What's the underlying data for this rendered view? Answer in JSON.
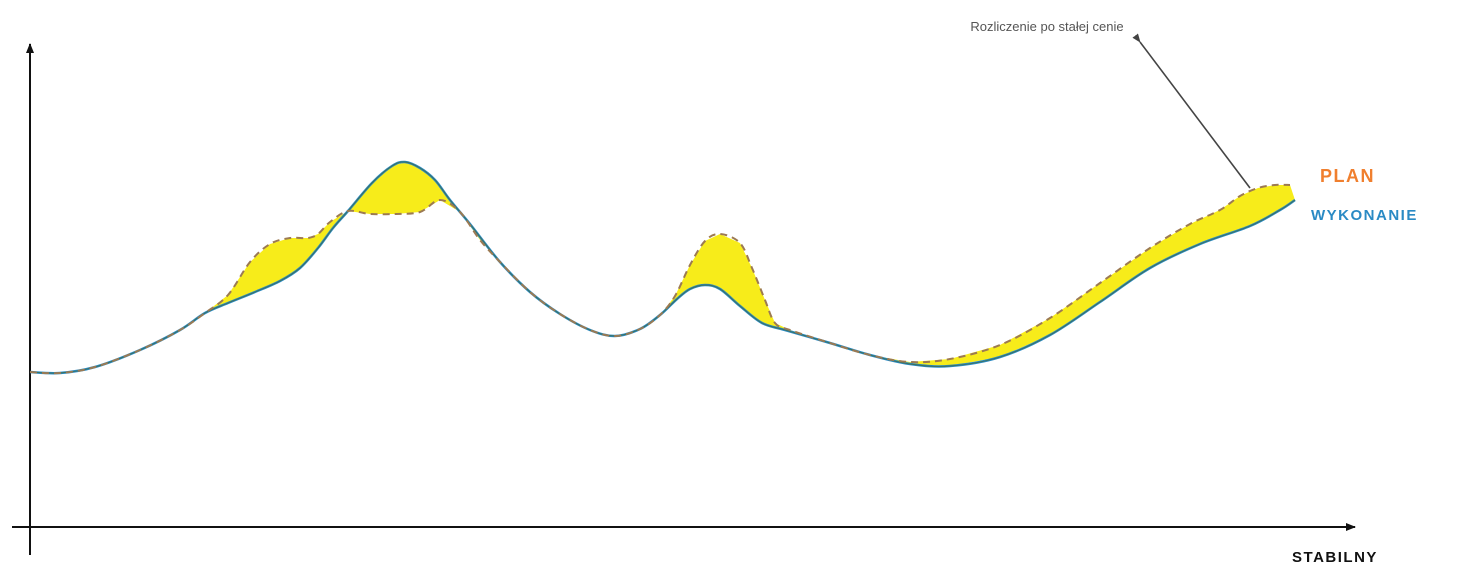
{
  "chart_data": {
    "type": "line",
    "xlabel": "STABILNY",
    "ylabel": "",
    "grid": false,
    "legend": "right, next to line ends",
    "annotation": "Rozliczenie po stałej cenie",
    "series": [
      {
        "name": "PLAN",
        "color": "#f07f2e",
        "style": "dashed",
        "points": [
          [
            30,
            372
          ],
          [
            60,
            373
          ],
          [
            95,
            367
          ],
          [
            140,
            350
          ],
          [
            180,
            330
          ],
          [
            205,
            313
          ],
          [
            228,
            295
          ],
          [
            250,
            262
          ],
          [
            270,
            244
          ],
          [
            290,
            238
          ],
          [
            308,
            238
          ],
          [
            318,
            234
          ],
          [
            330,
            222
          ],
          [
            348,
            211
          ],
          [
            370,
            214
          ],
          [
            395,
            214
          ],
          [
            420,
            212
          ],
          [
            440,
            200
          ],
          [
            460,
            212
          ],
          [
            480,
            240
          ],
          [
            500,
            262
          ],
          [
            530,
            292
          ],
          [
            560,
            314
          ],
          [
            590,
            330
          ],
          [
            615,
            336
          ],
          [
            640,
            329
          ],
          [
            660,
            315
          ],
          [
            675,
            296
          ],
          [
            690,
            265
          ],
          [
            705,
            241
          ],
          [
            720,
            234
          ],
          [
            740,
            243
          ],
          [
            752,
            268
          ],
          [
            765,
            300
          ],
          [
            775,
            323
          ],
          [
            790,
            330
          ],
          [
            830,
            343
          ],
          [
            870,
            355
          ],
          [
            910,
            362
          ],
          [
            950,
            359
          ],
          [
            1000,
            345
          ],
          [
            1050,
            318
          ],
          [
            1100,
            283
          ],
          [
            1150,
            248
          ],
          [
            1190,
            224
          ],
          [
            1220,
            210
          ],
          [
            1240,
            196
          ],
          [
            1258,
            188
          ],
          [
            1275,
            185
          ],
          [
            1290,
            185
          ]
        ]
      },
      {
        "name": "WYKONANIE",
        "color": "#2a8ac4",
        "style": "solid",
        "points": [
          [
            30,
            372
          ],
          [
            60,
            373
          ],
          [
            95,
            367
          ],
          [
            140,
            350
          ],
          [
            180,
            330
          ],
          [
            205,
            313
          ],
          [
            228,
            303
          ],
          [
            255,
            292
          ],
          [
            280,
            281
          ],
          [
            300,
            268
          ],
          [
            318,
            248
          ],
          [
            333,
            228
          ],
          [
            348,
            211
          ],
          [
            372,
            183
          ],
          [
            392,
            166
          ],
          [
            405,
            162
          ],
          [
            420,
            168
          ],
          [
            435,
            180
          ],
          [
            450,
            200
          ],
          [
            470,
            224
          ],
          [
            500,
            262
          ],
          [
            530,
            292
          ],
          [
            560,
            314
          ],
          [
            590,
            330
          ],
          [
            615,
            336
          ],
          [
            640,
            329
          ],
          [
            660,
            315
          ],
          [
            677,
            299
          ],
          [
            690,
            289
          ],
          [
            705,
            285
          ],
          [
            720,
            289
          ],
          [
            740,
            306
          ],
          [
            762,
            323
          ],
          [
            785,
            330
          ],
          [
            830,
            343
          ],
          [
            870,
            355
          ],
          [
            910,
            364
          ],
          [
            950,
            366
          ],
          [
            1000,
            357
          ],
          [
            1050,
            335
          ],
          [
            1100,
            302
          ],
          [
            1150,
            268
          ],
          [
            1200,
            244
          ],
          [
            1250,
            226
          ],
          [
            1280,
            210
          ],
          [
            1295,
            200
          ]
        ]
      }
    ]
  }
}
